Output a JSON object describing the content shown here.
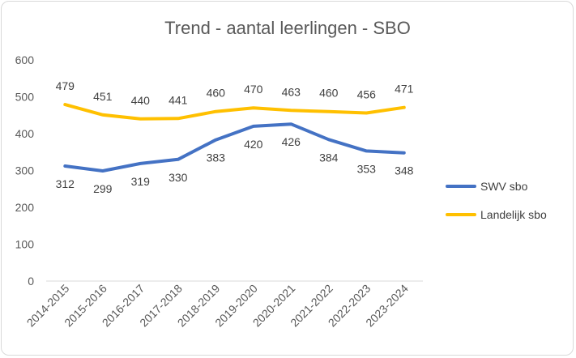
{
  "chart_data": {
    "type": "line",
    "title": "Trend - aantal leerlingen - SBO",
    "xlabel": "",
    "ylabel": "",
    "categories": [
      "2014-2015",
      "2015-2016",
      "2016-2017",
      "2017-2018",
      "2018-2019",
      "2019-2020",
      "2020-2021",
      "2021-2022",
      "2022-2023",
      "2023-2024"
    ],
    "ylim": [
      0,
      600
    ],
    "yticks": [
      "0",
      "100",
      "200",
      "300",
      "400",
      "500",
      "600"
    ],
    "grid": false,
    "legend_position": "right",
    "series": [
      {
        "name": "SWV sbo",
        "color": "#4472c4",
        "values": [
          312,
          299,
          319,
          330,
          383,
          420,
          426,
          384,
          353,
          348
        ],
        "label_position": "below"
      },
      {
        "name": "Landelijk sbo",
        "color": "#ffc000",
        "values": [
          479,
          451,
          440,
          441,
          460,
          470,
          463,
          460,
          456,
          471
        ],
        "label_position": "above"
      }
    ]
  }
}
